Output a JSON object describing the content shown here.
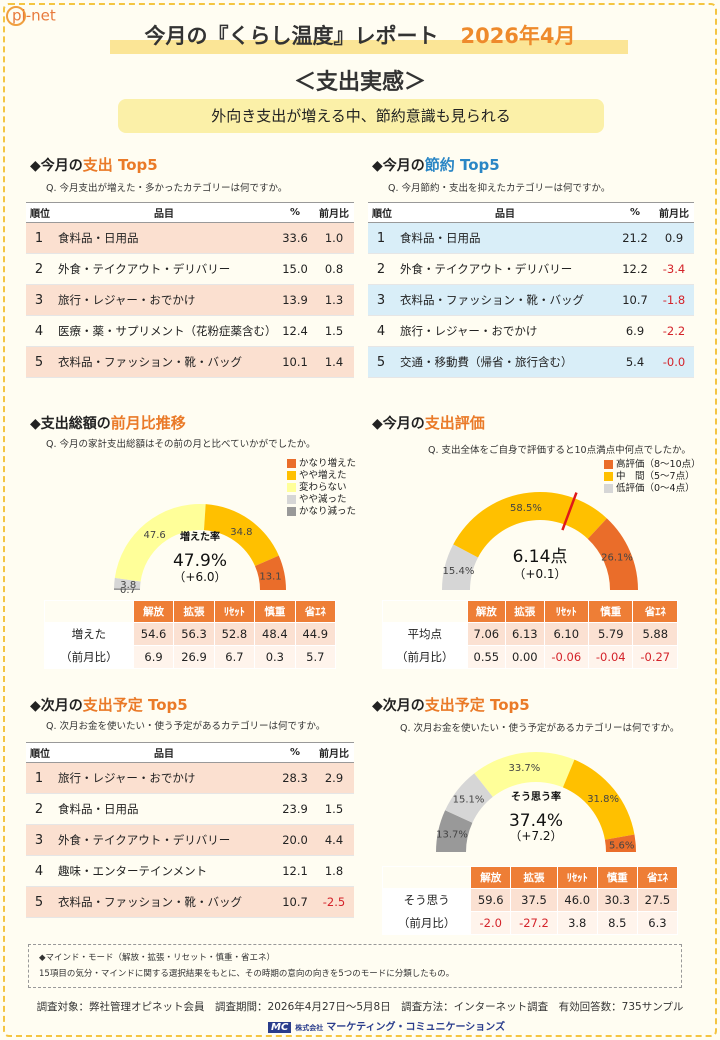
{
  "logo": "pi-net",
  "title": "今月の『くらし温度』レポート",
  "title_date": "2026年4月",
  "subtitle": "＜支出実感＞",
  "banner": "外向き支出が増える中、節約意識も見られる",
  "headers": {
    "rank": "順位",
    "item": "品目",
    "pct": "%",
    "diff": "前月比"
  },
  "spend_top5": {
    "title_pre": "◆今月の",
    "title_hl": "支出 Top5",
    "q": "Q.  今月支出が増えた・多かったカテゴリーは何ですか。",
    "rows": [
      {
        "n": "1",
        "item": "食料品・日用品",
        "pct": "33.6",
        "diff": "1.0"
      },
      {
        "n": "2",
        "item": "外食・テイクアウト・デリバリー",
        "pct": "15.0",
        "diff": "0.8"
      },
      {
        "n": "3",
        "item": "旅行・レジャー・おでかけ",
        "pct": "13.9",
        "diff": "1.3"
      },
      {
        "n": "4",
        "item": "医療・薬・サプリメント（花粉症薬含む）",
        "pct": "12.4",
        "diff": "1.5"
      },
      {
        "n": "5",
        "item": "衣料品・ファッション・靴・バッグ",
        "pct": "10.1",
        "diff": "1.4"
      }
    ]
  },
  "save_top5": {
    "title_pre": "◆今月の",
    "title_hl": "節約 Top5",
    "q": "Q.  今月節約・支出を抑えたカテゴリーは何ですか。",
    "rows": [
      {
        "n": "1",
        "item": "食料品・日用品",
        "pct": "21.2",
        "diff": "0.9"
      },
      {
        "n": "2",
        "item": "外食・テイクアウト・デリバリー",
        "pct": "12.2",
        "diff": "-3.4"
      },
      {
        "n": "3",
        "item": "衣料品・ファッション・靴・バッグ",
        "pct": "10.7",
        "diff": "-1.8"
      },
      {
        "n": "4",
        "item": "旅行・レジャー・おでかけ",
        "pct": "6.9",
        "diff": "-2.2"
      },
      {
        "n": "5",
        "item": "交通・移動費（帰省・旅行含む）",
        "pct": "5.4",
        "diff": "-0.0"
      }
    ]
  },
  "trend": {
    "title_pre": "◆支出総額の",
    "title_hl": "前月比推移",
    "q": "Q.  今月の家計支出総額はその前の月と比べていかがでしたか。",
    "center_label": "増えた率",
    "center_value": "47.9%",
    "center_sub": "（+6.0）",
    "legend": [
      "かなり増えた",
      "やや増えた",
      "変わらない",
      "やや減った",
      "かなり減った"
    ],
    "cols": [
      "解放",
      "拡張",
      "ﾘｾｯﾄ",
      "慎重",
      "省ｴﾈ"
    ],
    "rows": [
      {
        "label": "増えた",
        "values": [
          "54.6",
          "56.3",
          "52.8",
          "48.4",
          "44.9"
        ]
      },
      {
        "label": "（前月比）",
        "values": [
          "6.9",
          "26.9",
          "6.7",
          "0.3",
          "5.7"
        ]
      }
    ]
  },
  "eval": {
    "title_pre": "◆今月の",
    "title_hl": "支出評価",
    "q": "Q.  支出全体をご自身で評価すると10点満点中何点でしたか。",
    "center_value": "6.14点",
    "center_sub": "（+0.1）",
    "legend": [
      "高評価（8～10点）",
      "中　間（5～7点）",
      "低評価（0～4点）"
    ],
    "cols": [
      "解放",
      "拡張",
      "ﾘｾｯﾄ",
      "慎重",
      "省ｴﾈ"
    ],
    "rows": [
      {
        "label": "平均点",
        "values": [
          "7.06",
          "6.13",
          "6.10",
          "5.79",
          "5.88"
        ]
      },
      {
        "label": "（前月比）",
        "values": [
          "0.55",
          "0.00",
          "-0.06",
          "-0.04",
          "-0.27"
        ]
      }
    ]
  },
  "plan_top5": {
    "title_pre": "◆次月の",
    "title_hl": "支出予定 Top5",
    "q": "Q.  次月お金を使いたい・使う予定があるカテゴリーは何ですか。",
    "rows": [
      {
        "n": "1",
        "item": "旅行・レジャー・おでかけ",
        "pct": "28.3",
        "diff": "2.9"
      },
      {
        "n": "2",
        "item": "食料品・日用品",
        "pct": "23.9",
        "diff": "1.5"
      },
      {
        "n": "3",
        "item": "外食・テイクアウト・デリバリー",
        "pct": "20.0",
        "diff": "4.4"
      },
      {
        "n": "4",
        "item": "趣味・エンターテインメント",
        "pct": "12.1",
        "diff": "1.8"
      },
      {
        "n": "5",
        "item": "衣料品・ファッション・靴・バッグ",
        "pct": "10.7",
        "diff": "-2.5"
      }
    ]
  },
  "plan_gauge": {
    "title_pre": "◆次月の",
    "title_hl": "支出予定 Top5",
    "q": "Q.  次月お金を使いたい・使う予定があるカテゴリーは何ですか。",
    "center_label": "そう思う率",
    "center_value": "37.4%",
    "center_sub": "（+7.2）",
    "cols": [
      "解放",
      "拡張",
      "ﾘｾｯﾄ",
      "慎重",
      "省ｴﾈ"
    ],
    "rows": [
      {
        "label": "そう思う",
        "values": [
          "59.6",
          "37.5",
          "46.0",
          "30.3",
          "27.5"
        ]
      },
      {
        "label": "（前月比）",
        "values": [
          "-2.0",
          "-27.2",
          "3.8",
          "8.5",
          "6.3"
        ]
      }
    ]
  },
  "note": {
    "line1": "◆マインド・モード（解放・拡張・リセット・慎重・省エネ）",
    "line2": "15項目の気分・マインドに関する選択結果をもとに、その時期の意向の向きを5つのモードに分類したもの。"
  },
  "footer": "調査対象：弊社管理オピネット会員　調査期間：2026年4月27日～5月8日　調査方法：インターネット調査　有効回答数：735サンプル",
  "corp_mark": "MC",
  "corp_small": "株式会社",
  "corp_name": "マーケティング・コミュニケーションズ",
  "chart_data": [
    {
      "type": "pie",
      "name": "trend-gauge",
      "series": [
        {
          "name": "かなり減った",
          "value": 0.7,
          "color": "#999999"
        },
        {
          "name": "やや減った",
          "value": 3.8,
          "color": "#d6d6d6"
        },
        {
          "name": "変わらない",
          "value": 47.6,
          "color": "#ffff99"
        },
        {
          "name": "やや増えた",
          "value": 34.8,
          "color": "#ffc000"
        },
        {
          "name": "かなり増えた",
          "value": 13.1,
          "color": "#ea6d2a"
        }
      ],
      "labels": [
        "0.7",
        "3.8",
        "47.6",
        "34.8",
        "13.1"
      ]
    },
    {
      "type": "pie",
      "name": "eval-gauge",
      "series": [
        {
          "name": "低評価（0～4点）",
          "value": 15.4,
          "color": "#d6d6d6"
        },
        {
          "name": "中　間（5～7点）",
          "value": 58.5,
          "color": "#ffc000"
        },
        {
          "name": "高評価（8～10点）",
          "value": 26.1,
          "color": "#ea6d2a"
        }
      ],
      "labels": [
        "15.4%",
        "58.5%",
        "26.1%"
      ],
      "needle": 6.14,
      "scale": [
        0,
        10
      ]
    },
    {
      "type": "pie",
      "name": "plan-gauge",
      "series": [
        {
          "name": "",
          "value": 13.7,
          "color": "#999999"
        },
        {
          "name": "",
          "value": 15.1,
          "color": "#d6d6d6"
        },
        {
          "name": "",
          "value": 33.7,
          "color": "#ffff99"
        },
        {
          "name": "",
          "value": 31.8,
          "color": "#ffc000"
        },
        {
          "name": "",
          "value": 5.6,
          "color": "#ea6d2a"
        }
      ],
      "labels": [
        "13.7%",
        "15.1%",
        "33.7%",
        "31.8%",
        "5.6%"
      ]
    }
  ]
}
